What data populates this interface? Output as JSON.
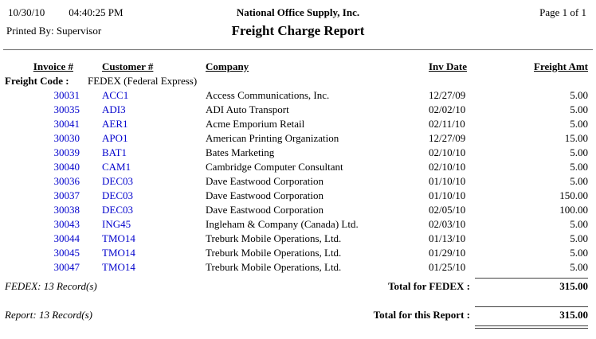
{
  "page": {
    "print_date": "10/30/10",
    "print_time": "04:40:25 PM",
    "company_name": "National Office Supply, Inc.",
    "page_info": "Page 1 of 1",
    "printed_by": "Printed By: Supervisor",
    "report_title": "Freight Charge Report"
  },
  "columns": {
    "invoice": "Invoice #",
    "customer": "Customer #",
    "company": "Company",
    "inv_date": "Inv Date",
    "freight_amt": "Freight Amt"
  },
  "group": {
    "freight_code_label": "Freight Code :",
    "freight_code_value": "FEDEX (Federal Express)",
    "record_count": "FEDEX: 13 Record(s)",
    "total_label": "Total for FEDEX :",
    "total_value": "315.00"
  },
  "report_footer": {
    "record_count": "Report: 13 Record(s)",
    "total_label": "Total for this Report :",
    "total_value": "315.00"
  },
  "rows": [
    {
      "invoice": "30031",
      "customer": "ACC1",
      "company": "Access Communications, Inc.",
      "inv_date": "12/27/09",
      "amount": "5.00"
    },
    {
      "invoice": "30035",
      "customer": "ADI3",
      "company": "ADI Auto Transport",
      "inv_date": "02/02/10",
      "amount": "5.00"
    },
    {
      "invoice": "30041",
      "customer": "AER1",
      "company": "Acme Emporium Retail",
      "inv_date": "02/11/10",
      "amount": "5.00"
    },
    {
      "invoice": "30030",
      "customer": "APO1",
      "company": "American Printing Organization",
      "inv_date": "12/27/09",
      "amount": "15.00"
    },
    {
      "invoice": "30039",
      "customer": "BAT1",
      "company": "Bates Marketing",
      "inv_date": "02/10/10",
      "amount": "5.00"
    },
    {
      "invoice": "30040",
      "customer": "CAM1",
      "company": "Cambridge Computer Consultant",
      "inv_date": "02/10/10",
      "amount": "5.00"
    },
    {
      "invoice": "30036",
      "customer": "DEC03",
      "company": "Dave Eastwood Corporation",
      "inv_date": "01/10/10",
      "amount": "5.00"
    },
    {
      "invoice": "30037",
      "customer": "DEC03",
      "company": "Dave Eastwood Corporation",
      "inv_date": "01/10/10",
      "amount": "150.00"
    },
    {
      "invoice": "30038",
      "customer": "DEC03",
      "company": "Dave Eastwood Corporation",
      "inv_date": "02/05/10",
      "amount": "100.00"
    },
    {
      "invoice": "30043",
      "customer": "ING45",
      "company": "Ingleham & Company (Canada) Ltd.",
      "inv_date": "02/03/10",
      "amount": "5.00"
    },
    {
      "invoice": "30044",
      "customer": "TMO14",
      "company": "Treburk Mobile Operations, Ltd.",
      "inv_date": "01/13/10",
      "amount": "5.00"
    },
    {
      "invoice": "30045",
      "customer": "TMO14",
      "company": "Treburk Mobile Operations, Ltd.",
      "inv_date": "01/29/10",
      "amount": "5.00"
    },
    {
      "invoice": "30047",
      "customer": "TMO14",
      "company": "Treburk Mobile Operations, Ltd.",
      "inv_date": "01/25/10",
      "amount": "5.00"
    }
  ],
  "colors": {
    "link_blue": "#0000CC",
    "text": "#000000",
    "rule": "#404040"
  }
}
